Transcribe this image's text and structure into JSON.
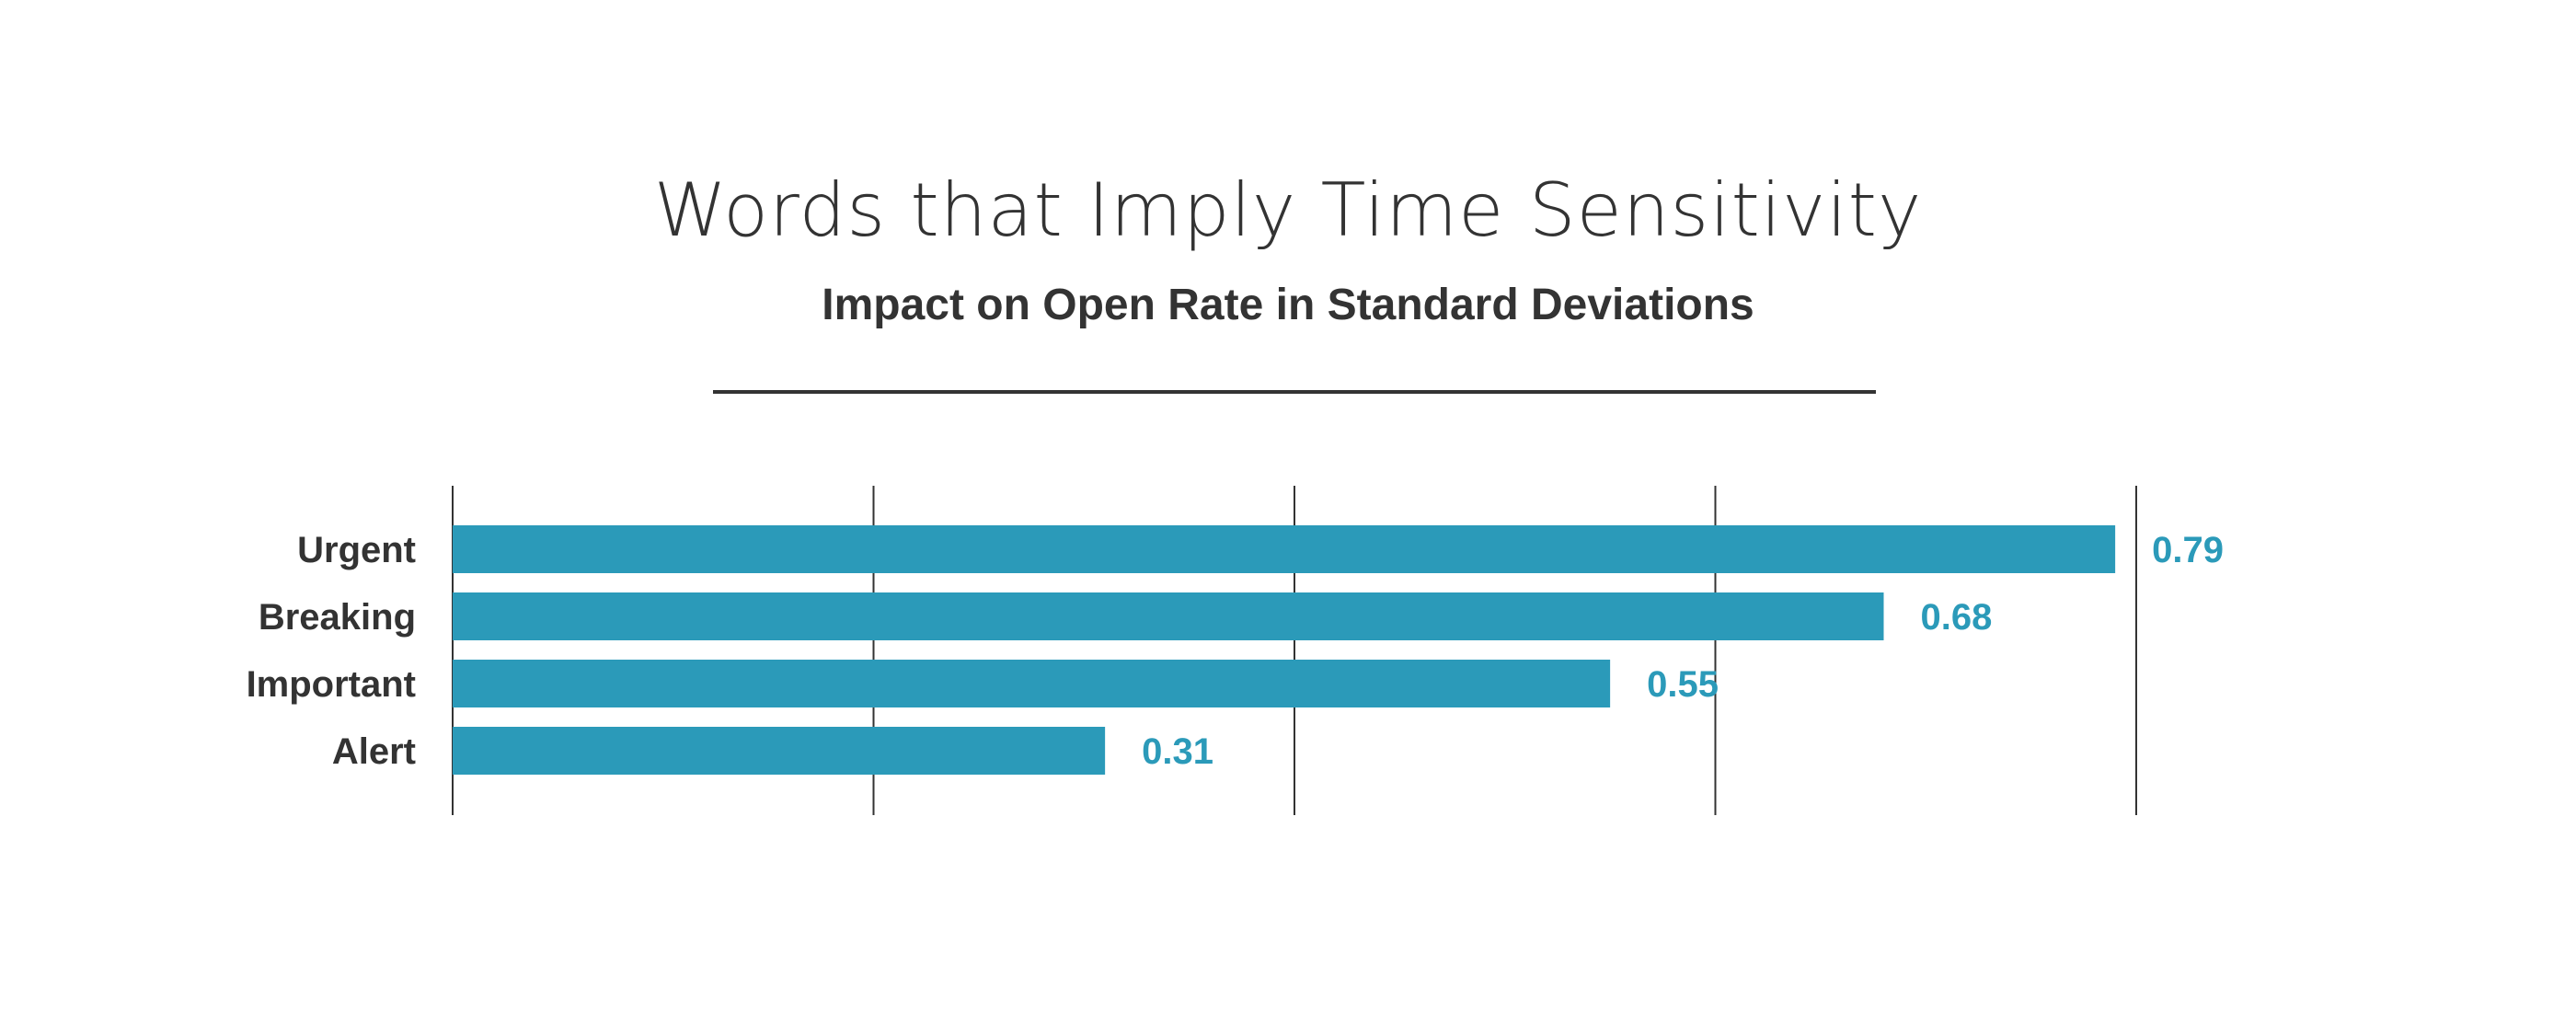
{
  "chart_data": {
    "type": "bar",
    "orientation": "horizontal",
    "title": "Words that Imply Time Sensitivity",
    "subtitle": "Impact on Open Rate in Standard Deviations",
    "categories": [
      "Urgent",
      "Breaking",
      "Important",
      "Alert"
    ],
    "values": [
      0.79,
      0.68,
      0.55,
      0.31
    ],
    "value_labels": [
      "0.79",
      "0.68",
      "0.55",
      "0.31"
    ],
    "xlim": [
      0,
      0.8
    ],
    "gridlines": [
      0,
      0.2,
      0.4,
      0.6,
      0.8
    ],
    "grid": true,
    "legend": "none",
    "bar_color": "#2b9ab9",
    "label_color": "#333333"
  }
}
